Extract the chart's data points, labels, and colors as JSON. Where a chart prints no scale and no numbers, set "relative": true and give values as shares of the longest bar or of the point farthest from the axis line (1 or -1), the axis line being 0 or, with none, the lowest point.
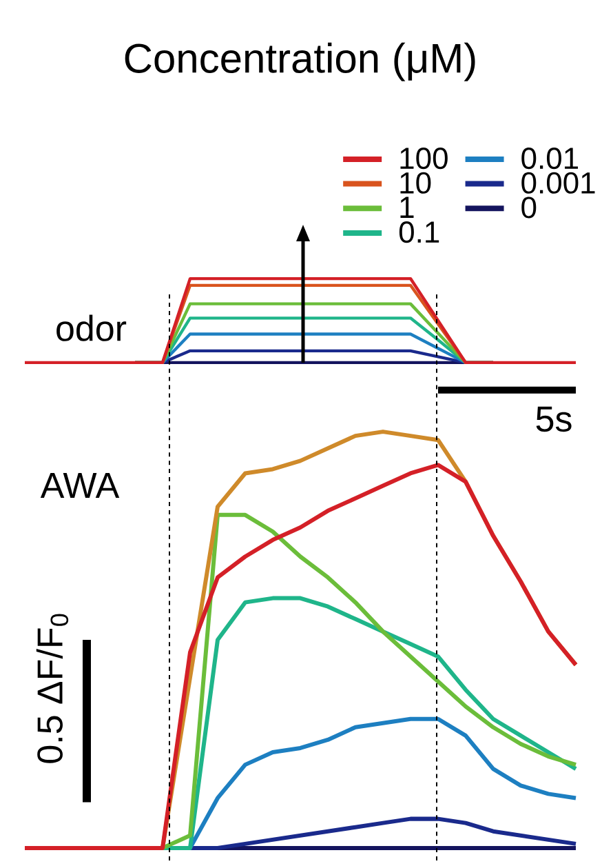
{
  "chart_data": [
    {
      "type": "line",
      "relative": true,
      "legend_title": "Concentration (μM)",
      "legend": "top right",
      "tick_labels": false,
      "line_style": "solid",
      "categories": [
        null,
        null,
        null,
        null,
        null,
        null,
        null,
        null,
        null,
        null,
        null,
        null,
        null,
        null,
        null,
        null,
        null,
        null,
        null,
        null,
        null
      ],
      "series": [
        {
          "name": "100",
          "color": "#d42027",
          "values": [
            0,
            0,
            0,
            0,
            0,
            0,
            1.0,
            1.0,
            1.0,
            1.0,
            1.0,
            1.0,
            1.0,
            1.0,
            1.0,
            0.5,
            0,
            0,
            0,
            0,
            0
          ]
        },
        {
          "name": "10",
          "color": "#d9541e",
          "values": [
            null,
            null,
            null,
            null,
            0,
            0,
            0.92,
            0.92,
            0.92,
            0.92,
            0.92,
            0.92,
            0.92,
            0.92,
            0.92,
            0.46,
            0,
            0,
            null,
            null,
            null
          ]
        },
        {
          "name": "1",
          "color": "#6bbd3a",
          "values": [
            null,
            null,
            null,
            null,
            0,
            0,
            0.7,
            0.7,
            0.7,
            0.7,
            0.7,
            0.7,
            0.7,
            0.7,
            0.7,
            0.35,
            0,
            0,
            null,
            null,
            null
          ]
        },
        {
          "name": "0.1",
          "color": "#1fb58a",
          "values": [
            null,
            null,
            null,
            null,
            0,
            0,
            0.53,
            0.53,
            0.53,
            0.53,
            0.53,
            0.53,
            0.53,
            0.53,
            0.53,
            0.27,
            0,
            0,
            null,
            null,
            null
          ]
        },
        {
          "name": "0.01",
          "color": "#1d7fc1",
          "values": [
            null,
            null,
            null,
            null,
            0,
            0,
            0.34,
            0.34,
            0.34,
            0.34,
            0.34,
            0.34,
            0.34,
            0.34,
            0.34,
            0.17,
            0,
            0,
            null,
            null,
            null
          ]
        },
        {
          "name": "0.001",
          "color": "#1a2a8c",
          "values": [
            null,
            null,
            null,
            null,
            0,
            0,
            0.14,
            0.14,
            0.14,
            0.14,
            0.14,
            0.14,
            0.14,
            0.14,
            0.14,
            0.07,
            0,
            0,
            null,
            null,
            null
          ]
        },
        {
          "name": "0",
          "color": "#14145e",
          "values": [
            null,
            null,
            null,
            null,
            0,
            0,
            0,
            0,
            0,
            0,
            0,
            0,
            0,
            0,
            0,
            0,
            0,
            0,
            null,
            null,
            null
          ]
        }
      ],
      "annotations": [
        "odor"
      ]
    },
    {
      "type": "line",
      "relative": true,
      "tick_labels": false,
      "line_style": "solid",
      "categories": [
        null,
        null,
        null,
        null,
        null,
        null,
        null,
        null,
        null,
        null,
        null,
        null,
        null,
        null,
        null,
        null,
        null,
        null,
        null,
        null,
        null
      ],
      "series": [
        {
          "color": "#d42027",
          "values": [
            0,
            0,
            0,
            0,
            0,
            0,
            0.47,
            0.65,
            0.7,
            0.74,
            0.77,
            0.81,
            0.84,
            0.87,
            0.9,
            0.92,
            0.88,
            0.75,
            0.64,
            0.52,
            0.44
          ]
        },
        {
          "color": "#cf8a2a",
          "values": [
            null,
            null,
            null,
            null,
            0,
            0,
            0.41,
            0.82,
            0.9,
            0.91,
            0.93,
            0.96,
            0.99,
            1.0,
            0.99,
            0.98,
            0.88,
            0.75,
            0.64,
            0.52,
            0.44
          ]
        },
        {
          "color": "#6bbd3a",
          "values": [
            null,
            null,
            null,
            null,
            0,
            0,
            0.03,
            0.8,
            0.8,
            0.76,
            0.7,
            0.65,
            0.59,
            0.52,
            0.46,
            0.4,
            0.34,
            0.29,
            0.25,
            0.22,
            0.2
          ]
        },
        {
          "color": "#1fb58a",
          "values": [
            null,
            null,
            null,
            null,
            0,
            0,
            0,
            0.5,
            0.59,
            0.6,
            0.6,
            0.58,
            0.55,
            0.52,
            0.49,
            0.46,
            0.38,
            0.31,
            0.27,
            0.23,
            0.19
          ]
        },
        {
          "color": "#1d7fc1",
          "values": [
            null,
            null,
            null,
            null,
            0,
            0,
            0,
            0.12,
            0.2,
            0.23,
            0.24,
            0.26,
            0.29,
            0.3,
            0.31,
            0.31,
            0.27,
            0.19,
            0.15,
            0.13,
            0.12
          ]
        },
        {
          "color": "#1a2a8c",
          "values": [
            null,
            null,
            null,
            null,
            0,
            0,
            0,
            0,
            0.01,
            0.02,
            0.03,
            0.04,
            0.05,
            0.06,
            0.07,
            0.07,
            0.06,
            0.04,
            0.03,
            0.02,
            0.01
          ]
        },
        {
          "color": "#14145e",
          "values": [
            null,
            null,
            null,
            null,
            null,
            null,
            0,
            0,
            0,
            0,
            0,
            0,
            0,
            0,
            0,
            0,
            0,
            0,
            0,
            0,
            0
          ]
        }
      ],
      "annotations": [
        "AWA",
        "5s",
        "0.5 ΔF/F$_{0}$"
      ]
    }
  ]
}
